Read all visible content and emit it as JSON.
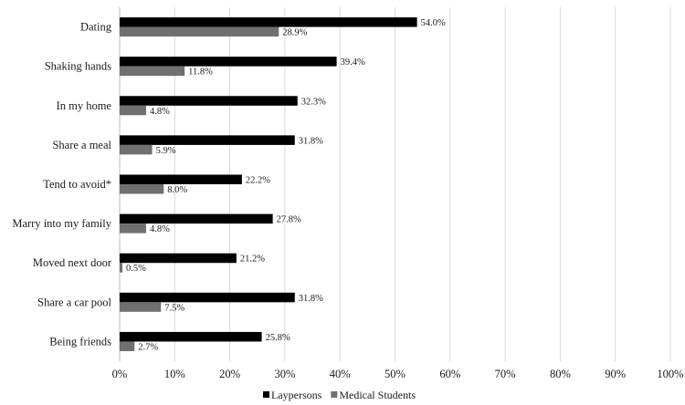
{
  "chart_data": {
    "type": "bar",
    "orientation": "horizontal",
    "categories": [
      "Dating",
      "Shaking hands",
      "In my home",
      "Share a meal",
      "Tend to avoid*",
      "Marry into my family",
      "Moved next door",
      "Share a car pool",
      "Being friends"
    ],
    "series": [
      {
        "name": "Laypersons",
        "color": "#000000",
        "values": [
          54.0,
          39.4,
          32.3,
          31.8,
          22.2,
          27.8,
          21.2,
          31.8,
          25.8
        ],
        "labels": [
          "54.0%",
          "39.4%",
          "32.3%",
          "31.8%",
          "22.2%",
          "27.8%",
          "21.2%",
          "31.8%",
          "25.8%"
        ]
      },
      {
        "name": "Medical Students",
        "color": "#707070",
        "values": [
          28.9,
          11.8,
          4.8,
          5.9,
          8.0,
          4.8,
          0.5,
          7.5,
          2.7
        ],
        "labels": [
          "28.9%",
          "11.8%",
          "4.8%",
          "5.9%",
          "8.0%",
          "4.8%",
          "0.5%",
          "7.5%",
          "2.7%"
        ]
      }
    ],
    "xlim": [
      0,
      100
    ],
    "xticks": [
      0,
      10,
      20,
      30,
      40,
      50,
      60,
      70,
      80,
      90,
      100
    ],
    "xtick_labels": [
      "0%",
      "10%",
      "20%",
      "30%",
      "40%",
      "50%",
      "60%",
      "70%",
      "80%",
      "90%",
      "100%"
    ],
    "grid": "vertical",
    "legend_position": "bottom",
    "title": "",
    "xlabel": "",
    "ylabel": ""
  }
}
